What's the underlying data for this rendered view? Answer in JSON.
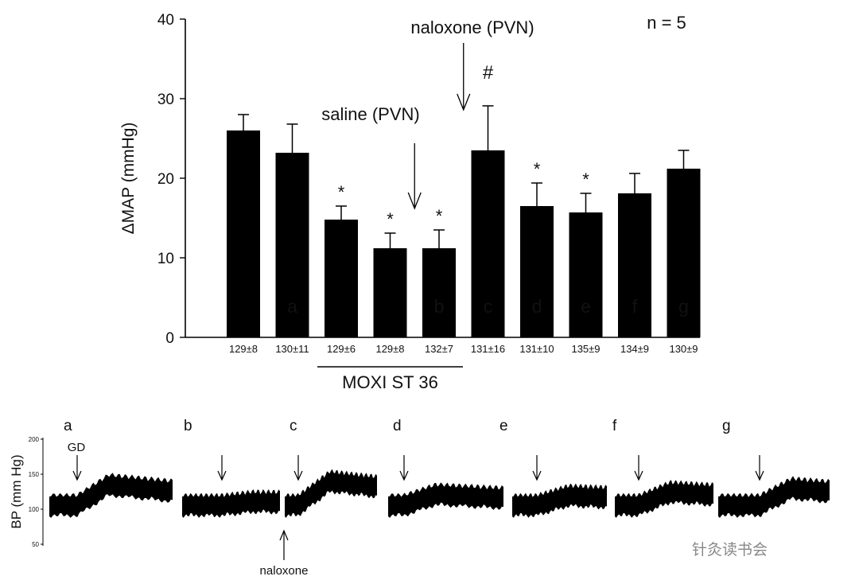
{
  "chart_data": {
    "type": "bar",
    "ylabel": "ΔMAP (mmHg)",
    "ylim": [
      0,
      40
    ],
    "yticks": [
      0,
      10,
      20,
      30,
      40
    ],
    "legend_text": "n = 5",
    "categories": [
      "129±8",
      "130±11",
      "129±6",
      "129±8",
      "132±7",
      "131±16",
      "131±10",
      "135±9",
      "134±9",
      "130±9"
    ],
    "values": [
      26,
      23.2,
      14.8,
      11.2,
      11.2,
      23.5,
      16.5,
      15.7,
      18.1,
      21.2
    ],
    "errors": [
      2.0,
      3.6,
      1.7,
      1.9,
      2.3,
      5.6,
      2.9,
      2.4,
      2.5,
      2.3
    ],
    "bar_letters": [
      "",
      "a",
      "",
      "",
      "b",
      "c",
      "d",
      "e",
      "f",
      "g"
    ],
    "significance": [
      "",
      "",
      "*",
      "*",
      "*",
      "#",
      "*",
      "*",
      "",
      ""
    ],
    "group_label": "MOXI ST 36",
    "group_range": [
      2,
      4
    ],
    "annotations": [
      {
        "text": "saline (PVN)",
        "between": [
          3,
          4
        ]
      },
      {
        "text": "naloxone (PVN)",
        "between": [
          4,
          5
        ]
      }
    ],
    "bar_color": "#000000"
  },
  "traces": {
    "ylabel": "BP (mm Hg)",
    "yticks": [
      "200",
      "150",
      "100",
      "50"
    ],
    "gd_label": "GD",
    "naloxone_label": "naloxone",
    "panels": [
      {
        "letter": "a",
        "rise": 0.85
      },
      {
        "letter": "b",
        "rise": 0.15
      },
      {
        "letter": "c",
        "rise": 1.0
      },
      {
        "letter": "d",
        "rise": 0.45
      },
      {
        "letter": "e",
        "rise": 0.4
      },
      {
        "letter": "f",
        "rise": 0.55
      },
      {
        "letter": "g",
        "rise": 0.7
      }
    ]
  },
  "watermark": "针灸读书会"
}
